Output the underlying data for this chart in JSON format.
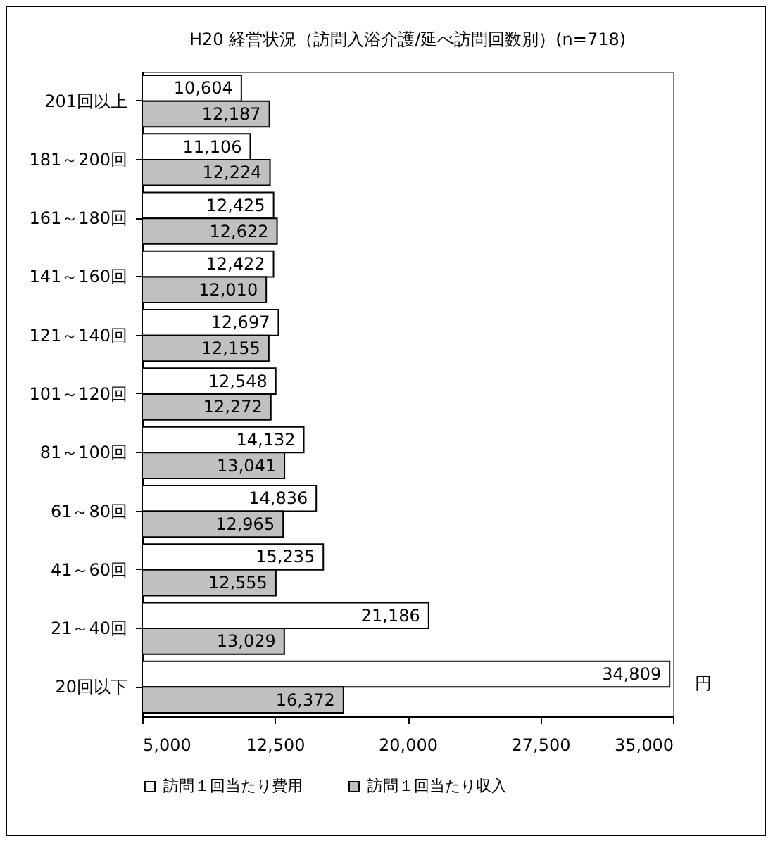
{
  "chart_data": {
    "type": "bar",
    "orientation": "horizontal",
    "title": "H20  経営状況（訪問入浴介護/延べ訪問回数別）(n=718)",
    "xlabel": "円",
    "categories": [
      "201回以上",
      "181～200回",
      "161～180回",
      "141～160回",
      "121～140回",
      "101～120回",
      "81～100回",
      "61～80回",
      "41～60回",
      "21～40回",
      "20回以下"
    ],
    "series": [
      {
        "name": "訪問１回当たり費用",
        "color": "#ffffff",
        "values": [
          10604,
          11106,
          12425,
          12422,
          12697,
          12548,
          14132,
          14836,
          15235,
          21186,
          34809
        ],
        "value_labels": [
          "10,604",
          "11,106",
          "12,425",
          "12,422",
          "12,697",
          "12,548",
          "14,132",
          "14,836",
          "15,235",
          "21,186",
          "34,809"
        ]
      },
      {
        "name": "訪問１回当たり収入",
        "color": "#c0c0c0",
        "values": [
          12187,
          12224,
          12622,
          12010,
          12155,
          12272,
          13041,
          12965,
          12555,
          13029,
          16372
        ],
        "value_labels": [
          "12,187",
          "12,224",
          "12,622",
          "12,010",
          "12,155",
          "12,272",
          "13,041",
          "12,965",
          "12,555",
          "13,029",
          "16,372"
        ]
      }
    ],
    "xlim": [
      5000,
      35000
    ],
    "xticks": [
      {
        "value": 5000,
        "label": "5,000"
      },
      {
        "value": 12500,
        "label": "12,500"
      },
      {
        "value": 20000,
        "label": "20,000"
      },
      {
        "value": 27500,
        "label": "27,500"
      },
      {
        "value": 35000,
        "label": "35,000"
      }
    ],
    "legend": "bottom",
    "grid": false
  }
}
